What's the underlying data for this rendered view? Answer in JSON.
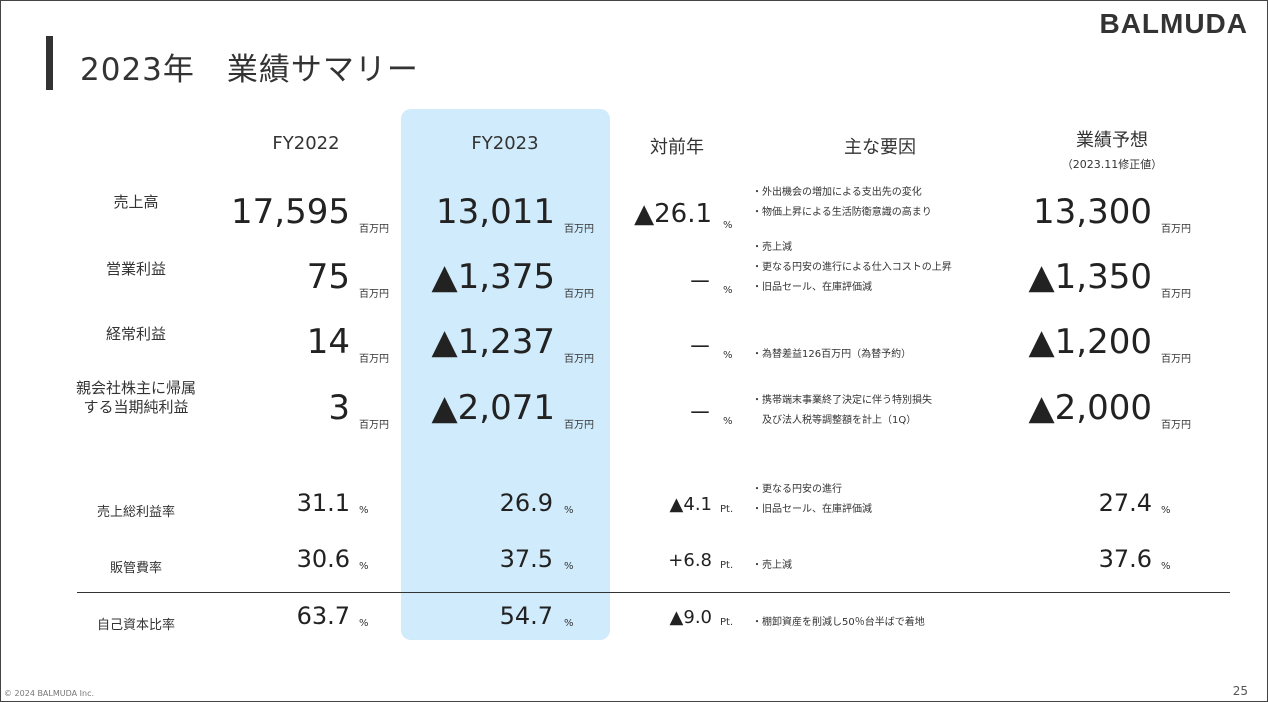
{
  "brand": "BALMUDA",
  "title": "2023年　業績サマリー",
  "headers": {
    "fy2022": "FY2022",
    "fy2023": "FY2023",
    "yoy": "対前年",
    "factors": "主な要因",
    "forecast": "業績予想",
    "forecast_sub": "（2023.11修正値）"
  },
  "units": {
    "million_yen": "百万円",
    "percent": "%",
    "point": "Pt."
  },
  "rows": [
    {
      "label": "売上高",
      "fy2022": "17,595",
      "fy2023": "13,011",
      "yoy": "▲26.1",
      "forecast": "13,300",
      "notes": [
        "・外出機会の増加による支出先の変化",
        "・物価上昇による生活防衛意識の高まり"
      ]
    },
    {
      "label": "営業利益",
      "fy2022": "75",
      "fy2023": "▲1,375",
      "yoy": "－",
      "forecast": "▲1,350",
      "notes": [
        "・売上減",
        "・更なる円安の進行による仕入コストの上昇",
        "・旧品セール、在庫評価減"
      ]
    },
    {
      "label": "経常利益",
      "fy2022": "14",
      "fy2023": "▲1,237",
      "yoy": "－",
      "forecast": "▲1,200",
      "notes": [
        "・為替差益126百万円（為替予約）"
      ]
    },
    {
      "label_line1": "親会社株主に帰属",
      "label_line2": "する当期純利益",
      "fy2022": "3",
      "fy2023": "▲2,071",
      "yoy": "－",
      "forecast": "▲2,000",
      "notes": [
        "・携帯端末事業終了決定に伴う特別損失",
        "　及び法人税等調整額を計上（1Q）"
      ]
    }
  ],
  "ratios": [
    {
      "label": "売上総利益率",
      "fy2022": "31.1",
      "fy2023": "26.9",
      "yoy": "▲4.1",
      "forecast": "27.4",
      "notes": [
        "・更なる円安の進行",
        "・旧品セール、在庫評価減"
      ]
    },
    {
      "label": "販管費率",
      "fy2022": "30.6",
      "fy2023": "37.5",
      "yoy": "+6.8",
      "forecast": "37.6",
      "notes": [
        "・売上減"
      ]
    },
    {
      "label": "自己資本比率",
      "fy2022": "63.7",
      "fy2023": "54.7",
      "yoy": "▲9.0",
      "notes": [
        "・棚卸資産を削減し50％台半ばで着地"
      ]
    }
  ],
  "footer": {
    "copyright": "© 2024 BALMUDA Inc.",
    "page": "25"
  }
}
